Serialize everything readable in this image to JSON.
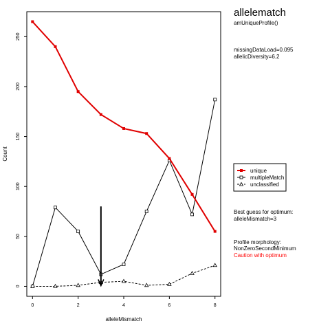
{
  "header": {
    "title": "allelematch",
    "subtitle": "amUniqueProfile()"
  },
  "stats": {
    "missing_data_load": "missingDataLoad=0.095",
    "allelic_diversity": "allelicDiversity=6.2"
  },
  "best_guess": {
    "label": "Best guess for optimum:",
    "value": "alleleMismatch=3"
  },
  "morphology": {
    "label": "Profile morphology:",
    "value": "NonZeroSecondMinimum",
    "caution": "Caution with optimum"
  },
  "colors": {
    "unique": "#e00000",
    "multipleMatch": "#000000",
    "unclassified": "#000000",
    "caution": "#ff0000"
  },
  "chart_data": {
    "type": "line",
    "xlabel": "alleleMismatch",
    "ylabel": "Count",
    "x": [
      0,
      1,
      2,
      3,
      4,
      5,
      6,
      7,
      8
    ],
    "xlim": [
      -0.25,
      8.25
    ],
    "ylim": [
      -10,
      275
    ],
    "xticks": [
      0,
      2,
      4,
      6,
      8
    ],
    "yticks": [
      0,
      50,
      100,
      150,
      200,
      250
    ],
    "grid": false,
    "legend_placement": "right",
    "series": [
      {
        "name": "unique",
        "values": [
          265,
          240,
          195,
          172,
          158,
          153,
          128,
          92,
          55
        ],
        "color": "#e00000",
        "marker": "square-filled",
        "line": "solid",
        "width": 2
      },
      {
        "name": "multipleMatch",
        "values": [
          0,
          79,
          55,
          12,
          22,
          75,
          126,
          72,
          187
        ],
        "color": "#000000",
        "marker": "square-open",
        "line": "solid",
        "width": 1
      },
      {
        "name": "unclassified",
        "values": [
          0,
          0,
          1,
          4,
          5,
          1,
          2,
          13,
          21
        ],
        "color": "#000000",
        "marker": "triangle-open",
        "line": "dashed",
        "width": 1
      }
    ],
    "optimum_arrow": {
      "x": 3,
      "y_from": 80,
      "y_to": 0
    }
  }
}
